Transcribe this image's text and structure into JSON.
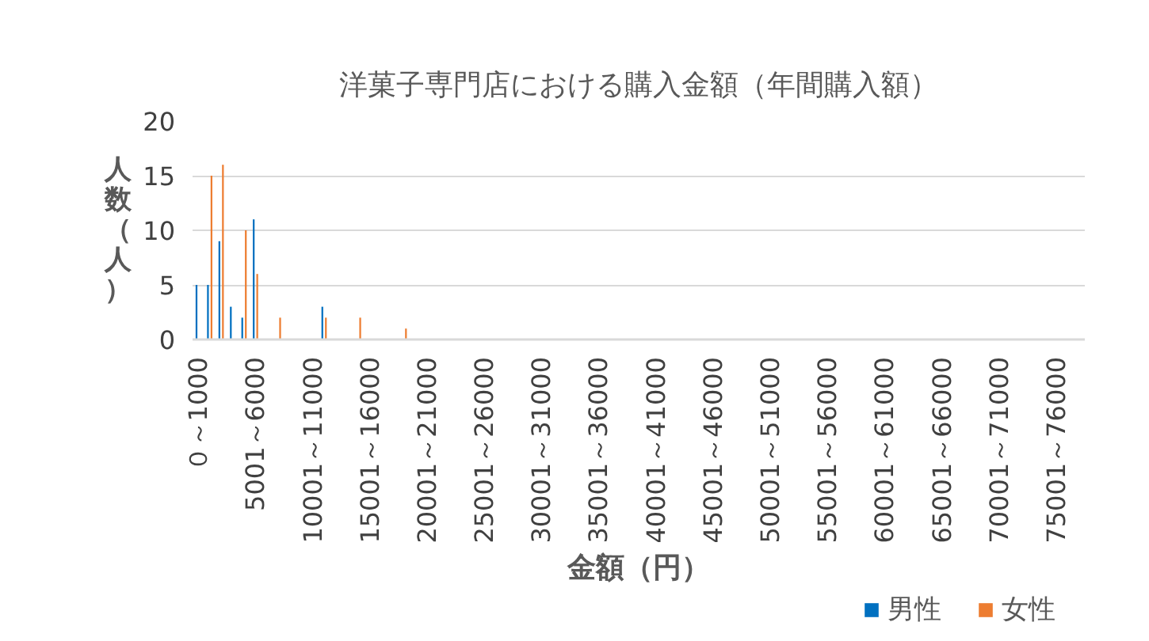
{
  "chart_data": {
    "type": "bar",
    "title": "洋菓子専門店における購入金額（年間購入額）",
    "xlabel": "金額（円）",
    "ylabel": "人数（人）",
    "categories": [
      "０～1000",
      null,
      null,
      null,
      null,
      "5001～6000",
      null,
      null,
      null,
      null,
      "10001～11000",
      null,
      null,
      null,
      null,
      "15001～16000",
      null,
      null,
      null,
      null,
      "20001～21000",
      null,
      null,
      null,
      null,
      "25001～26000",
      null,
      null,
      null,
      null,
      "30001～31000",
      null,
      null,
      null,
      null,
      "35001～36000",
      null,
      null,
      null,
      null,
      "40001～41000",
      null,
      null,
      null,
      null,
      "45001～46000",
      null,
      null,
      null,
      null,
      "50001～51000",
      null,
      null,
      null,
      null,
      "55001～56000",
      null,
      null,
      null,
      null,
      "60001～61000",
      null,
      null,
      null,
      null,
      "65001～66000",
      null,
      null,
      null,
      null,
      "70001～71000",
      null,
      null,
      null,
      null,
      "75001～76000",
      null,
      null
    ],
    "series": [
      {
        "name": "男性",
        "color": "#0070c0",
        "values": [
          5,
          5,
          9,
          3,
          2,
          11,
          0,
          0,
          0,
          0,
          0,
          3,
          0,
          0,
          0,
          0,
          0,
          0,
          0,
          0,
          0,
          0,
          0,
          0,
          0,
          0,
          0,
          0,
          0,
          0,
          0,
          0,
          0,
          0,
          0,
          0,
          0,
          0,
          0,
          0,
          0,
          0,
          0,
          0,
          0,
          0,
          0,
          0,
          0,
          0,
          0,
          0,
          0,
          0,
          0,
          0,
          0,
          0,
          0,
          0,
          0,
          0,
          0,
          0,
          0,
          0,
          0,
          0,
          0,
          0,
          0,
          0,
          0,
          0,
          0,
          0,
          0,
          0
        ]
      },
      {
        "name": "女性",
        "color": "#ed7d31",
        "values": [
          0,
          15,
          16,
          0,
          10,
          6,
          0,
          2,
          0,
          0,
          0,
          2,
          0,
          0,
          2,
          0,
          0,
          0,
          1,
          0,
          0,
          0,
          0,
          0,
          0,
          0,
          0,
          0,
          0,
          0,
          0,
          0,
          0,
          0,
          0,
          0,
          0,
          0,
          0,
          0,
          0,
          0,
          0,
          0,
          0,
          0,
          0,
          0,
          0,
          0,
          0,
          0,
          0,
          0,
          0,
          0,
          0,
          0,
          0,
          0,
          0,
          0,
          0,
          0,
          0,
          0,
          0,
          0,
          0,
          0,
          0,
          0,
          0,
          0,
          0,
          0,
          0,
          0
        ]
      }
    ],
    "ylim": [
      0,
      20
    ],
    "yticks": [
      0,
      5,
      10,
      15,
      20
    ],
    "grid": "y",
    "legend": "bottom right"
  }
}
